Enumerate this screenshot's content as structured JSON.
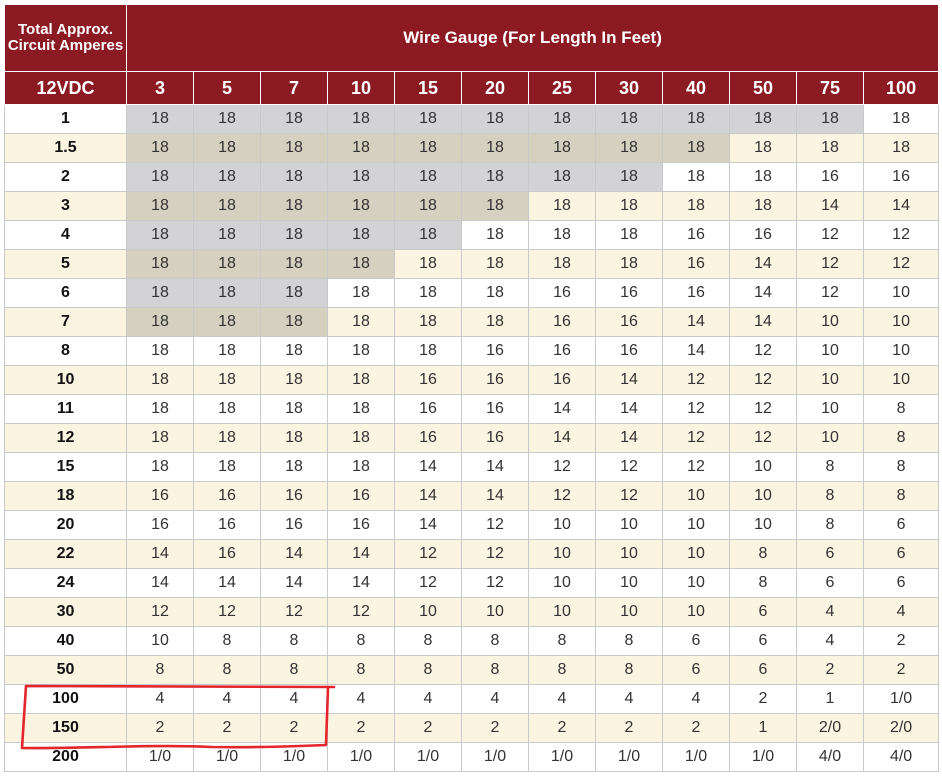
{
  "header": {
    "corner_label": "Total Approx. Circuit Amperes",
    "title": "Wire Gauge (For Length In Feet)",
    "voltage_label": "12VDC",
    "lengths": [
      "3",
      "5",
      "7",
      "10",
      "15",
      "20",
      "25",
      "30",
      "40",
      "50",
      "75",
      "100"
    ]
  },
  "rows": [
    {
      "amps": "1",
      "gauges": [
        "18",
        "18",
        "18",
        "18",
        "18",
        "18",
        "18",
        "18",
        "18",
        "18",
        "18",
        "18"
      ],
      "shaded": 11
    },
    {
      "amps": "1.5",
      "gauges": [
        "18",
        "18",
        "18",
        "18",
        "18",
        "18",
        "18",
        "18",
        "18",
        "18",
        "18",
        "18"
      ],
      "shaded": 9
    },
    {
      "amps": "2",
      "gauges": [
        "18",
        "18",
        "18",
        "18",
        "18",
        "18",
        "18",
        "18",
        "18",
        "18",
        "16",
        "16"
      ],
      "shaded": 8
    },
    {
      "amps": "3",
      "gauges": [
        "18",
        "18",
        "18",
        "18",
        "18",
        "18",
        "18",
        "18",
        "18",
        "18",
        "14",
        "14"
      ],
      "shaded": 6
    },
    {
      "amps": "4",
      "gauges": [
        "18",
        "18",
        "18",
        "18",
        "18",
        "18",
        "18",
        "18",
        "16",
        "16",
        "12",
        "12"
      ],
      "shaded": 5
    },
    {
      "amps": "5",
      "gauges": [
        "18",
        "18",
        "18",
        "18",
        "18",
        "18",
        "18",
        "18",
        "16",
        "14",
        "12",
        "12"
      ],
      "shaded": 4
    },
    {
      "amps": "6",
      "gauges": [
        "18",
        "18",
        "18",
        "18",
        "18",
        "18",
        "16",
        "16",
        "16",
        "14",
        "12",
        "10"
      ],
      "shaded": 3
    },
    {
      "amps": "7",
      "gauges": [
        "18",
        "18",
        "18",
        "18",
        "18",
        "18",
        "16",
        "16",
        "14",
        "14",
        "10",
        "10"
      ],
      "shaded": 3
    },
    {
      "amps": "8",
      "gauges": [
        "18",
        "18",
        "18",
        "18",
        "18",
        "16",
        "16",
        "16",
        "14",
        "12",
        "10",
        "10"
      ],
      "shaded": 0
    },
    {
      "amps": "10",
      "gauges": [
        "18",
        "18",
        "18",
        "18",
        "16",
        "16",
        "16",
        "14",
        "12",
        "12",
        "10",
        "10"
      ],
      "shaded": 0
    },
    {
      "amps": "11",
      "gauges": [
        "18",
        "18",
        "18",
        "18",
        "16",
        "16",
        "14",
        "14",
        "12",
        "12",
        "10",
        "8"
      ],
      "shaded": 0
    },
    {
      "amps": "12",
      "gauges": [
        "18",
        "18",
        "18",
        "18",
        "16",
        "16",
        "14",
        "14",
        "12",
        "12",
        "10",
        "8"
      ],
      "shaded": 0
    },
    {
      "amps": "15",
      "gauges": [
        "18",
        "18",
        "18",
        "18",
        "14",
        "14",
        "12",
        "12",
        "12",
        "10",
        "8",
        "8"
      ],
      "shaded": 0
    },
    {
      "amps": "18",
      "gauges": [
        "16",
        "16",
        "16",
        "16",
        "14",
        "14",
        "12",
        "12",
        "10",
        "10",
        "8",
        "8"
      ],
      "shaded": 0
    },
    {
      "amps": "20",
      "gauges": [
        "16",
        "16",
        "16",
        "16",
        "14",
        "12",
        "10",
        "10",
        "10",
        "10",
        "8",
        "6"
      ],
      "shaded": 0
    },
    {
      "amps": "22",
      "gauges": [
        "14",
        "16",
        "14",
        "14",
        "12",
        "12",
        "10",
        "10",
        "10",
        "8",
        "6",
        "6"
      ],
      "shaded": 0
    },
    {
      "amps": "24",
      "gauges": [
        "14",
        "14",
        "14",
        "14",
        "12",
        "12",
        "10",
        "10",
        "10",
        "8",
        "6",
        "6"
      ],
      "shaded": 0
    },
    {
      "amps": "30",
      "gauges": [
        "12",
        "12",
        "12",
        "12",
        "10",
        "10",
        "10",
        "10",
        "10",
        "6",
        "4",
        "4"
      ],
      "shaded": 0
    },
    {
      "amps": "40",
      "gauges": [
        "10",
        "8",
        "8",
        "8",
        "8",
        "8",
        "8",
        "8",
        "6",
        "6",
        "4",
        "2"
      ],
      "shaded": 0
    },
    {
      "amps": "50",
      "gauges": [
        "8",
        "8",
        "8",
        "8",
        "8",
        "8",
        "8",
        "8",
        "6",
        "6",
        "2",
        "2"
      ],
      "shaded": 0
    },
    {
      "amps": "100",
      "gauges": [
        "4",
        "4",
        "4",
        "4",
        "4",
        "4",
        "4",
        "4",
        "4",
        "2",
        "1",
        "1/0"
      ],
      "shaded": 0
    },
    {
      "amps": "150",
      "gauges": [
        "2",
        "2",
        "2",
        "2",
        "2",
        "2",
        "2",
        "2",
        "2",
        "1",
        "2/0",
        "2/0"
      ],
      "shaded": 0
    },
    {
      "amps": "200",
      "gauges": [
        "1/0",
        "1/0",
        "1/0",
        "1/0",
        "1/0",
        "1/0",
        "1/0",
        "1/0",
        "1/0",
        "1/0",
        "4/0",
        "4/0"
      ],
      "shaded": 0
    }
  ],
  "colors": {
    "header_bg": "#8b1a22",
    "shade_white_row": "#d3d3d5",
    "shade_cream_row": "#d5d0bf",
    "cream_row": "#fbf4e1",
    "annotation": "#e3262b"
  }
}
